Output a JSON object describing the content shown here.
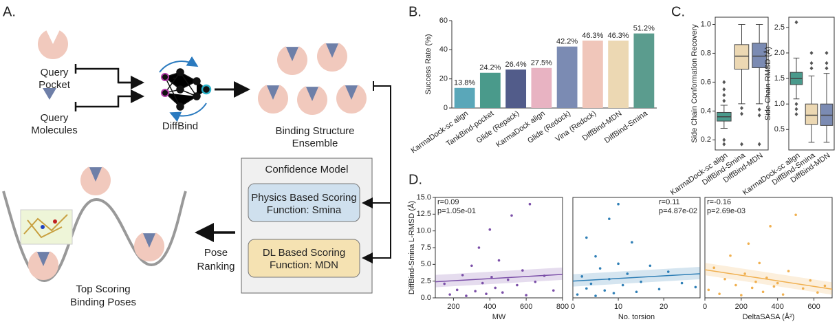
{
  "panel_labels": [
    "A.",
    "B.",
    "C.",
    "D."
  ],
  "diagram": {
    "query_pocket": [
      "Query",
      "Pocket"
    ],
    "query_molecules": [
      "Query",
      "Molecules"
    ],
    "model": "DiffBind",
    "ensemble": [
      "Binding Structure",
      "Ensemble"
    ],
    "confidence_model": {
      "title": "Confidence Model",
      "physics": [
        "Physics Based Scoring",
        "Function: Smina"
      ],
      "dl": [
        "DL Based Scoring",
        "Function: MDN"
      ]
    },
    "ranking": [
      "Pose",
      "Ranking"
    ],
    "top": [
      "Top Scoring",
      "Binding Poses"
    ]
  },
  "chart_data": [
    {
      "type": "bar",
      "ylabel": "Success Rate (%)",
      "categories": [
        "KarmaDock-sc align",
        "TankBind-pocket",
        "Glide (Repack)",
        "KarmaDock align",
        "Glide (Redock)",
        "Vina (Redock)",
        "DiffBind-MDN",
        "DiffBind-Smina"
      ],
      "values": [
        13.8,
        24.2,
        26.4,
        27.5,
        42.2,
        46.3,
        46.3,
        51.2
      ],
      "value_labels": [
        "13.8%",
        "24.2%",
        "26.4%",
        "27.5%",
        "42.2%",
        "46.3%",
        "46.3%",
        "51.2%"
      ],
      "colors": [
        "#5aa7b9",
        "#4a9a8b",
        "#525c8a",
        "#e8b3c2",
        "#7b8bb3",
        "#f0c6ba",
        "#ecd8b3",
        "#5b9c8e"
      ],
      "label_colors": [
        "#222222",
        "#222222",
        "#222222",
        "#222222",
        "#222222",
        "#222222",
        "#a83232",
        "#a83232"
      ],
      "ylim": [
        0,
        60
      ],
      "yticks": [
        0,
        20,
        40,
        60
      ]
    },
    {
      "type": "box",
      "ylabel": "Side Chain Conformation Recovery",
      "categories": [
        "KarmaDock-sc align",
        "DiffBind-Smina",
        "DiffBind-MDN"
      ],
      "label_colors": [
        "#222222",
        "#a83232",
        "#a83232"
      ],
      "colors": [
        "#4a9a8c",
        "#ecd8b3",
        "#7b8bb3"
      ],
      "boxes": [
        {
          "whislo": 0.28,
          "q1": 0.33,
          "med": 0.36,
          "q3": 0.39,
          "whishi": 0.44,
          "outliers": [
            0.47,
            0.51,
            0.55,
            0.6,
            0.2,
            0.17
          ]
        },
        {
          "whislo": 0.45,
          "q1": 0.69,
          "med": 0.78,
          "q3": 0.86,
          "whishi": 1.0,
          "outliers": [
            0.42,
            0.38,
            0.17
          ]
        },
        {
          "whislo": 0.45,
          "q1": 0.7,
          "med": 0.78,
          "q3": 0.87,
          "whishi": 1.0,
          "outliers": [
            0.41,
            0.37,
            0.17
          ]
        }
      ],
      "ylim": [
        0.13,
        1.05
      ],
      "yticks": [
        0.2,
        0.4,
        0.6,
        0.8,
        {
          "value": 1,
          "label": "1.0"
        }
      ]
    },
    {
      "type": "box",
      "ylabel": "Side Chain RMSD (Å)",
      "categories": [
        "KarmaDock-sc align",
        "DiffBind-Smina",
        "DiffBind-MDN"
      ],
      "label_colors": [
        "#222222",
        "#a83232",
        "#a83232"
      ],
      "colors": [
        "#4a9a8c",
        "#ecd8b3",
        "#7b8bb3"
      ],
      "boxes": [
        {
          "whislo": 1.1,
          "q1": 1.38,
          "med": 1.5,
          "q3": 1.62,
          "whishi": 1.9,
          "outliers": [
            2.6,
            1.0,
            0.9,
            0.8
          ]
        },
        {
          "whislo": 0.25,
          "q1": 0.6,
          "med": 0.78,
          "q3": 1.0,
          "whishi": 1.55,
          "outliers": [
            1.7,
            1.8,
            2.0
          ]
        },
        {
          "whislo": 0.25,
          "q1": 0.58,
          "med": 0.78,
          "q3": 1.0,
          "whishi": 1.6,
          "outliers": [
            1.7,
            1.8,
            2.0
          ]
        }
      ],
      "ylim": [
        0.1,
        2.7
      ],
      "yticks": [
        0.5,
        {
          "value": 1,
          "label": "1.0"
        },
        1.5,
        {
          "value": 2,
          "label": "2.0"
        },
        2.5
      ]
    },
    {
      "type": "scatter",
      "xlabel": "MW",
      "ylabel": "DiffBind-Smina L-RMSD (Å)",
      "color": "#7b4fa8",
      "annotations": [
        "r=0.09",
        "p=1.05e-01"
      ],
      "annotation_corner": "upper left",
      "x": [
        150,
        180,
        220,
        250,
        270,
        300,
        320,
        340,
        360,
        380,
        400,
        410,
        430,
        450,
        470,
        500,
        520,
        550,
        580,
        600,
        620,
        650,
        700,
        750
      ],
      "values": [
        2.1,
        0.5,
        1.2,
        3.4,
        0.3,
        4.8,
        1.0,
        7.5,
        2.2,
        0.6,
        10.2,
        3.1,
        1.5,
        5.6,
        0.8,
        2.7,
        12.3,
        1.9,
        4.1,
        0.4,
        14.0,
        2.4,
        3.3,
        1.1
      ],
      "fit": {
        "x": [
          100,
          800
        ],
        "y": [
          2.4,
          3.5
        ]
      },
      "xlim": [
        100,
        800
      ],
      "xticks": [
        200,
        400,
        600,
        800
      ],
      "ylim": [
        0,
        15
      ],
      "yticks": [
        {
          "value": 0,
          "label": "0.0"
        },
        2.5,
        {
          "value": 5,
          "label": "5.0"
        },
        7.5,
        {
          "value": 10,
          "label": "10.0"
        },
        12.5,
        {
          "value": 15,
          "label": "15.0"
        }
      ]
    },
    {
      "type": "scatter",
      "xlabel": "No. torsion",
      "color": "#2f7fb6",
      "annotations": [
        "r=0.11",
        "p=4.87e-02"
      ],
      "annotation_corner": "upper right",
      "x": [
        1,
        2,
        3,
        3,
        4,
        5,
        5,
        6,
        7,
        8,
        8,
        9,
        10,
        10,
        11,
        12,
        13,
        14,
        15,
        17,
        19,
        21,
        24,
        27
      ],
      "values": [
        0.5,
        3.2,
        1.4,
        9.0,
        2.1,
        0.3,
        6.2,
        4.4,
        1.1,
        11.8,
        2.8,
        0.7,
        5.1,
        14.0,
        1.9,
        3.6,
        8.3,
        0.9,
        2.4,
        4.8,
        1.3,
        3.9,
        2.2,
        1.6
      ],
      "fit": {
        "x": [
          0,
          28
        ],
        "y": [
          2.5,
          3.6
        ]
      },
      "xlim": [
        0,
        28
      ],
      "xticks": [
        0,
        10,
        20
      ],
      "ylim": [
        0,
        15
      ]
    },
    {
      "type": "scatter",
      "xlabel": "DeltaSASA (Å²)",
      "color": "#f0b050",
      "annotations": [
        "r=-0.16",
        "p=2.69e-03"
      ],
      "annotation_corner": "upper left",
      "x": [
        20,
        50,
        80,
        110,
        140,
        170,
        200,
        220,
        240,
        260,
        280,
        300,
        320,
        340,
        360,
        380,
        400,
        430,
        460,
        500,
        540,
        580,
        620,
        660
      ],
      "values": [
        1.2,
        4.5,
        0.6,
        2.8,
        6.3,
        1.9,
        0.4,
        3.6,
        8.1,
        1.5,
        2.4,
        5.2,
        0.9,
        3.0,
        10.7,
        1.7,
        2.2,
        0.5,
        4.0,
        12.4,
        1.4,
        2.6,
        0.8,
        1.8
      ],
      "fit": {
        "x": [
          0,
          700
        ],
        "y": [
          4.2,
          1.3
        ]
      },
      "xlim": [
        0,
        700
      ],
      "xticks": [
        0,
        200,
        400,
        600
      ],
      "ylim": [
        0,
        15
      ]
    }
  ]
}
